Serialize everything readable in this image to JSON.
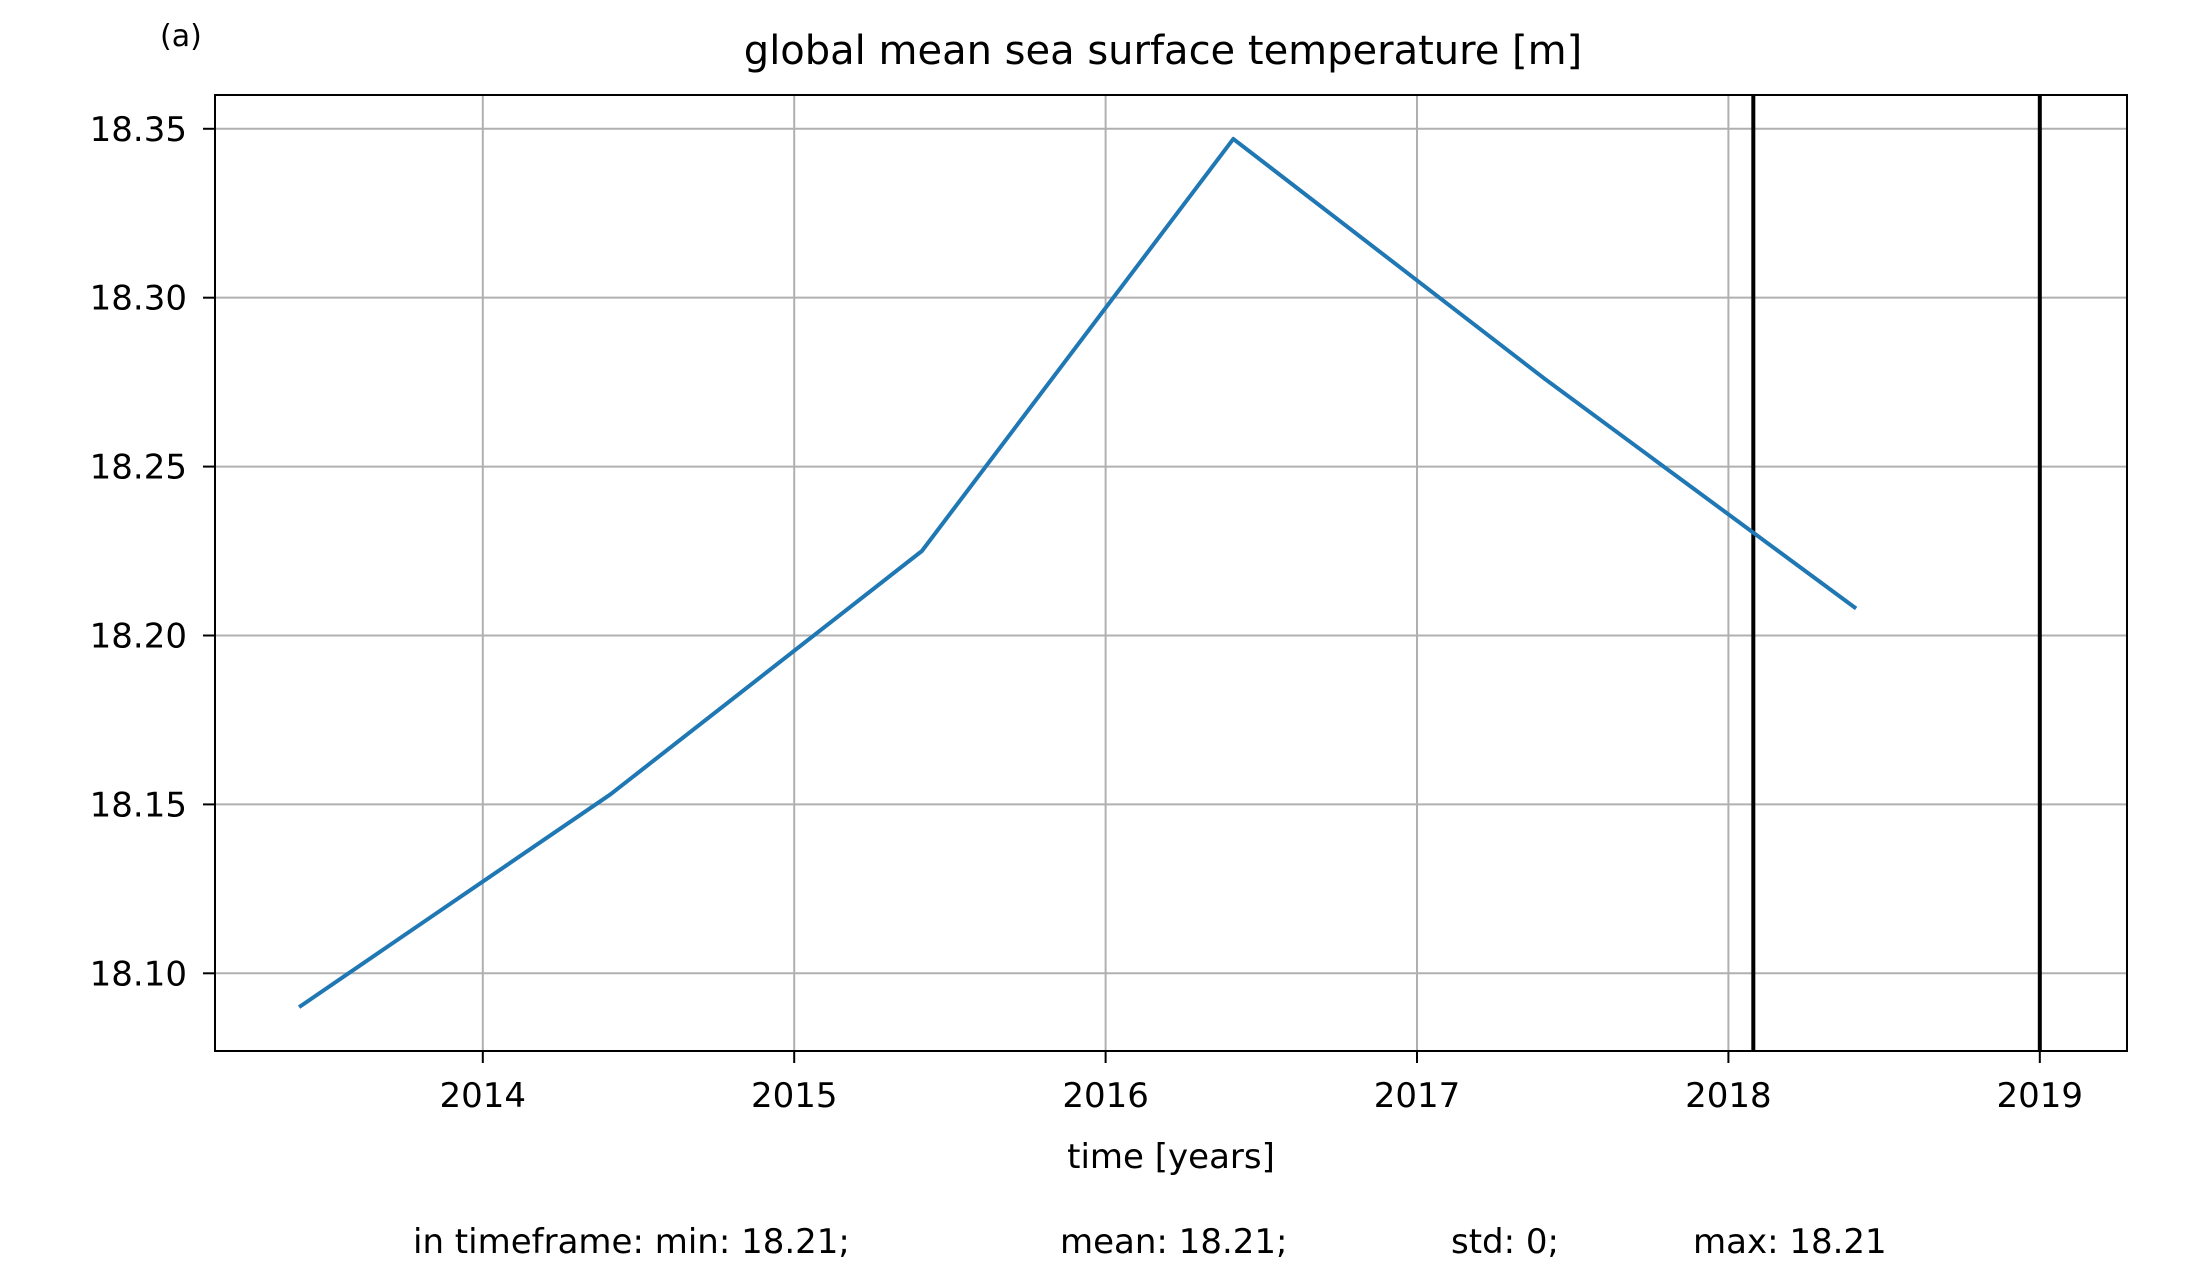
{
  "panel_label": "(a)",
  "footer": {
    "min_text": "in timeframe: min: 18.21;",
    "mean_text": "mean: 18.21;",
    "std_text": "std: 0;",
    "max_text": "max: 18.21"
  },
  "colors": {
    "series": "#1f77b4",
    "grid": "#b0b0b0",
    "marker_lines": "#000000",
    "axes": "#000000"
  },
  "chart_data": {
    "type": "line",
    "title": "global mean sea surface temperature [m]",
    "xlabel": "time [years]",
    "ylabel": "",
    "xlim": [
      2013.14,
      2019.28
    ],
    "ylim": [
      18.077,
      18.36
    ],
    "grid": true,
    "x_ticks": [
      2014,
      2015,
      2016,
      2017,
      2018,
      2019
    ],
    "x_tick_labels": [
      "2014",
      "2015",
      "2016",
      "2017",
      "2018",
      "2019"
    ],
    "y_ticks": [
      18.1,
      18.15,
      18.2,
      18.25,
      18.3,
      18.35
    ],
    "y_tick_labels": [
      "18.10",
      "18.15",
      "18.20",
      "18.25",
      "18.30",
      "18.35"
    ],
    "series": [
      {
        "x": [
          2013.41,
          2014.41,
          2015.41,
          2016.41,
          2017.41,
          2018.41
        ],
        "values": [
          18.09,
          18.153,
          18.225,
          18.347,
          18.276,
          18.208
        ]
      }
    ],
    "vertical_lines": [
      2018.08,
      2019.0
    ]
  }
}
